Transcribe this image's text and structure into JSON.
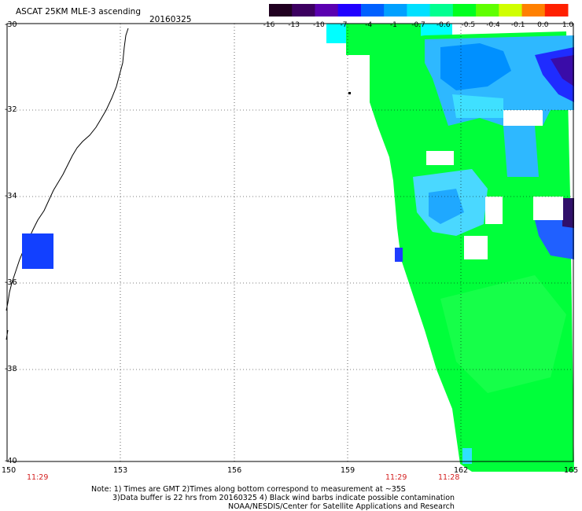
{
  "title": "ASCAT 25KM MLE-3 ascending",
  "date": "20160325",
  "colorbar": {
    "labels": [
      "-16",
      "-13",
      "-10",
      "-7",
      "-4",
      "-1",
      "-0.7",
      "-0.6",
      "-0.5",
      "-0.4",
      "-0.1",
      "0.0",
      "1.0"
    ],
    "colors": [
      "#200020",
      "#3c0060",
      "#5a00b0",
      "#2000ff",
      "#0060ff",
      "#00a0ff",
      "#00e0ff",
      "#00ff90",
      "#00ff20",
      "#60ff00",
      "#d0ff00",
      "#ff8000",
      "#ff2000"
    ]
  },
  "y_axis": {
    "labels": [
      "-30",
      "-32",
      "-34",
      "-36",
      "-38",
      "-40"
    ]
  },
  "x_axis": {
    "labels": [
      "150",
      "153",
      "156",
      "159",
      "162",
      "165"
    ]
  },
  "times": [
    "11:29",
    "11:29",
    "11:28"
  ],
  "note": {
    "line1": "Note: 1) Times are GMT 2)Times along bottom correspond to measurement at ~35S",
    "line2": "3)Data buffer is 22 hrs from 20160325 4) Black wind barbs indicate possible contamination",
    "line3": "NOAA/NESDIS/Center for Satellite Applications and Research"
  }
}
